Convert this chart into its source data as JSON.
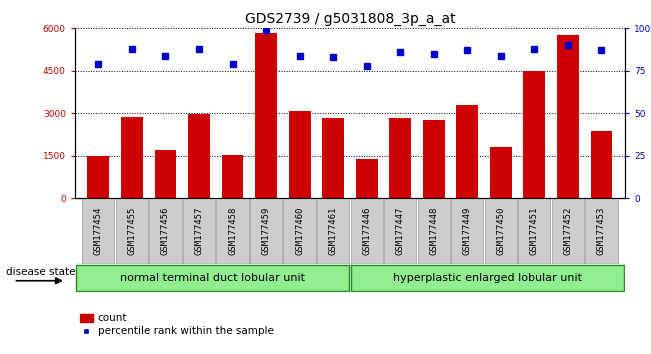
{
  "title": "GDS2739 / g5031808_3p_a_at",
  "categories": [
    "GSM177454",
    "GSM177455",
    "GSM177456",
    "GSM177457",
    "GSM177458",
    "GSM177459",
    "GSM177460",
    "GSM177461",
    "GSM177446",
    "GSM177447",
    "GSM177448",
    "GSM177449",
    "GSM177450",
    "GSM177451",
    "GSM177452",
    "GSM177453"
  ],
  "bar_values": [
    1480,
    2880,
    1700,
    2980,
    1510,
    5820,
    3080,
    2820,
    1380,
    2850,
    2780,
    3280,
    1820,
    4500,
    5780,
    2380
  ],
  "percentile_values": [
    79,
    88,
    84,
    88,
    79,
    99,
    84,
    83,
    78,
    86,
    85,
    87,
    84,
    88,
    90,
    87
  ],
  "bar_color": "#cc0000",
  "percentile_color": "#0000cc",
  "ylim_left": [
    0,
    6000
  ],
  "ylim_right": [
    0,
    100
  ],
  "yticks_left": [
    0,
    1500,
    3000,
    4500,
    6000
  ],
  "ytick_labels_left": [
    "0",
    "1500",
    "3000",
    "4500",
    "6000"
  ],
  "yticks_right": [
    0,
    25,
    50,
    75,
    100
  ],
  "ytick_labels_right": [
    "0",
    "25",
    "50",
    "75",
    "100%"
  ],
  "group1_label": "normal terminal duct lobular unit",
  "group2_label": "hyperplastic enlarged lobular unit",
  "group1_count": 8,
  "group2_count": 8,
  "disease_state_label": "disease state",
  "legend_bar_label": "count",
  "legend_pct_label": "percentile rank within the sample",
  "bar_width": 0.65,
  "bg_color": "#ffffff",
  "plot_bg_color": "#ffffff",
  "tick_bg_color": "#cccccc",
  "group_color": "#90ee90",
  "group_edge_color": "#228B22",
  "title_fontsize": 10,
  "tick_fontsize": 6.5,
  "label_fontsize": 8,
  "legend_fontsize": 7.5
}
